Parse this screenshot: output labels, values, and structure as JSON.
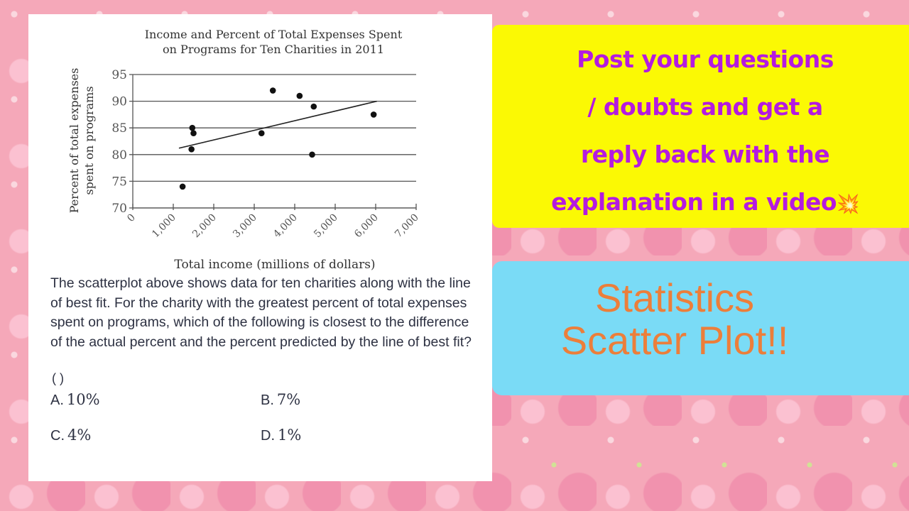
{
  "question_card": {
    "question_text": "The scatterplot above shows data for ten charities along with the line of best fit. For the charity with the greatest percent of total expenses spent on programs, which of the following is closest to the difference of the actual percent and the percent predicted by the line of best fit?",
    "answer_blank": "( )",
    "options": [
      {
        "letter": "A.",
        "value": "10%"
      },
      {
        "letter": "B.",
        "value": "7%"
      },
      {
        "letter": "C.",
        "value": "4%"
      },
      {
        "letter": "D.",
        "value": "1%"
      }
    ]
  },
  "promo_box": {
    "lines": [
      "Post your questions",
      "/ doubts and get a",
      "reply back with the",
      "explanation in a video"
    ],
    "icon": "collision-icon",
    "icon_glyph": "💥",
    "background": "#fbf904",
    "text_color": "#b41be0"
  },
  "topic_box": {
    "lines": [
      "Statistics",
      "Scatter Plot!!"
    ],
    "background": "#7adbf6",
    "text_color": "#ec7e3a"
  },
  "chart_data": {
    "type": "scatter",
    "title": "Income and Percent of Total Expenses Spent on Programs for Ten Charities in 2011",
    "title_lines": [
      "Income and Percent of Total Expenses Spent",
      "on Programs for Ten Charities in 2011"
    ],
    "xlabel": "Total income (millions of dollars)",
    "ylabel": "Percent of total expenses spent on programs",
    "ylabel_lines": [
      "Percent of total expenses",
      "spent on programs"
    ],
    "xlim": [
      0,
      7000
    ],
    "ylim": [
      70,
      95
    ],
    "xticks": [
      "0",
      "1,000",
      "2,000",
      "3,000",
      "4,000",
      "5,000",
      "6,000",
      "7,000"
    ],
    "yticks": [
      "70",
      "75",
      "80",
      "85",
      "90",
      "95"
    ],
    "grid": "horizontal",
    "legend": "none",
    "points": [
      {
        "x": 1230,
        "y": 74
      },
      {
        "x": 1450,
        "y": 81
      },
      {
        "x": 1470,
        "y": 85
      },
      {
        "x": 1500,
        "y": 84
      },
      {
        "x": 3180,
        "y": 84
      },
      {
        "x": 3460,
        "y": 92
      },
      {
        "x": 4120,
        "y": 91
      },
      {
        "x": 4430,
        "y": 80
      },
      {
        "x": 4470,
        "y": 89
      },
      {
        "x": 5950,
        "y": 87.5
      }
    ],
    "best_fit_line": {
      "x1": 1140,
      "y1": 81.2,
      "x2": 6030,
      "y2": 90
    }
  }
}
